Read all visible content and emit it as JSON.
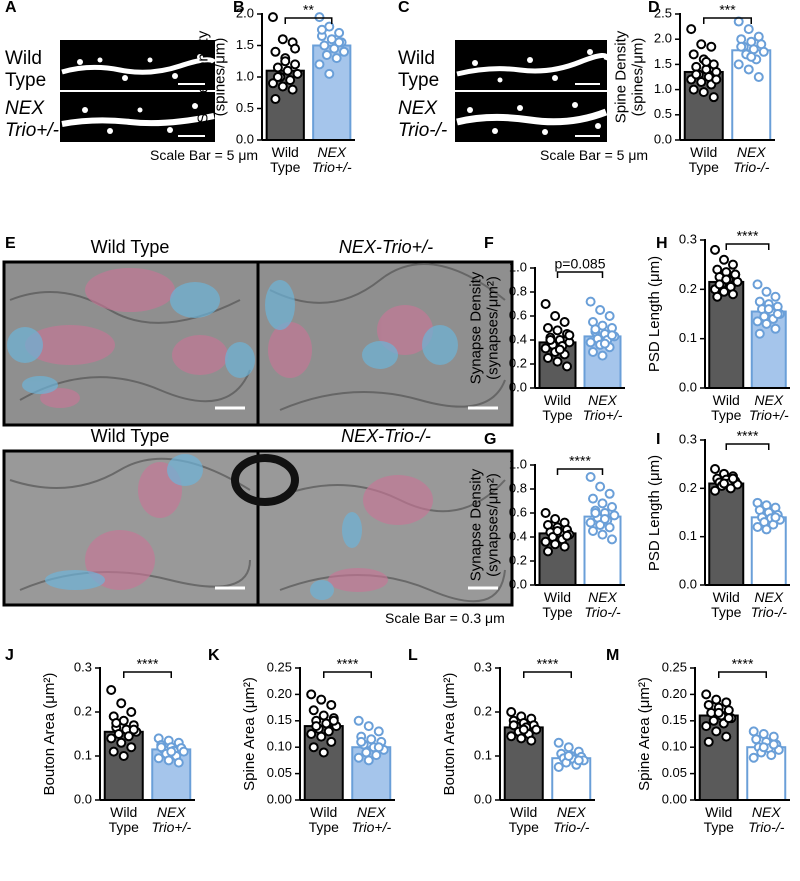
{
  "images": {
    "A": {
      "panel": "A",
      "labels": [
        "Wild Type",
        "NEX Trio+/-"
      ],
      "scale_bar": "Scale Bar = 5 μm"
    },
    "C": {
      "panel": "C",
      "labels": [
        "Wild Type",
        "NEX Trio-/-"
      ],
      "scale_bar": "Scale Bar = 5 μm"
    },
    "E": {
      "panel": "E",
      "titles": [
        "Wild Type",
        "NEX-Trio+/-",
        "Wild Type",
        "NEX-Trio-/-"
      ],
      "scale_bar": "Scale Bar = 0.3 μm"
    }
  },
  "chart_data": [
    {
      "type": "bar",
      "panel": "B",
      "ylabel": "Spine Density (spines/μm)",
      "categories": [
        "Wild Type",
        "NEX Trio+/-"
      ],
      "values": [
        1.1,
        1.5
      ],
      "colors": [
        "#5a5a5a",
        "#a5c5eb"
      ],
      "edge_colors": [
        "#000000",
        "#6a9fd8"
      ],
      "point_colors": [
        "#000000",
        "#6a9fd8"
      ],
      "points": [
        [
          1.95,
          1.6,
          1.55,
          1.4,
          1.3,
          1.2,
          1.15,
          1.1,
          1.05,
          1.0,
          0.95,
          0.9,
          0.85,
          0.8,
          0.65,
          1.25,
          1.45,
          1.0
        ],
        [
          1.95,
          1.8,
          1.7,
          1.65,
          1.6,
          1.55,
          1.5,
          1.45,
          1.4,
          1.35,
          1.3,
          1.2,
          1.05,
          1.55,
          1.75
        ]
      ],
      "ylim": [
        0,
        2
      ],
      "yticks": [
        {
          "value": 0,
          "label": "0.0"
        },
        0.5,
        {
          "value": 1,
          "label": "1.0"
        },
        1.5,
        {
          "value": 2,
          "label": "2.0"
        }
      ],
      "significance": "**"
    },
    {
      "type": "bar",
      "panel": "D",
      "ylabel": "Spine Density (spines/μm)",
      "categories": [
        "Wild Type",
        "NEX Trio-/-"
      ],
      "values": [
        1.35,
        1.78
      ],
      "colors": [
        "#5a5a5a",
        "#ffffff"
      ],
      "edge_colors": [
        "#000000",
        "#6a9fd8"
      ],
      "point_colors": [
        "#000000",
        "#6a9fd8"
      ],
      "points": [
        [
          2.2,
          1.9,
          1.85,
          1.7,
          1.6,
          1.5,
          1.45,
          1.4,
          1.35,
          1.3,
          1.25,
          1.2,
          1.15,
          1.1,
          1.0,
          0.95,
          0.85,
          1.3,
          1.55,
          1.2
        ],
        [
          2.35,
          2.2,
          2.05,
          2.0,
          1.95,
          1.9,
          1.85,
          1.8,
          1.75,
          1.7,
          1.6,
          1.5,
          1.4,
          1.25,
          1.85,
          1.65
        ]
      ],
      "ylim": [
        0,
        2.5
      ],
      "yticks": [
        {
          "value": 0,
          "label": "0.0"
        },
        0.5,
        {
          "value": 1,
          "label": "1.0"
        },
        1.5,
        {
          "value": 2,
          "label": "2.0"
        },
        2.5
      ],
      "significance": "***"
    },
    {
      "type": "bar",
      "panel": "F",
      "ylabel": "Synapse Density (synapses/μm²)",
      "categories": [
        "Wild Type",
        "NEX Trio+/-"
      ],
      "values": [
        0.38,
        0.43
      ],
      "colors": [
        "#5a5a5a",
        "#a5c5eb"
      ],
      "edge_colors": [
        "#000000",
        "#6a9fd8"
      ],
      "point_colors": [
        "#000000",
        "#6a9fd8"
      ],
      "points": [
        [
          0.7,
          0.6,
          0.55,
          0.5,
          0.48,
          0.45,
          0.42,
          0.4,
          0.38,
          0.36,
          0.35,
          0.33,
          0.3,
          0.28,
          0.25,
          0.22,
          0.18,
          0.4,
          0.32,
          0.44
        ],
        [
          0.72,
          0.65,
          0.6,
          0.55,
          0.52,
          0.5,
          0.47,
          0.45,
          0.43,
          0.41,
          0.4,
          0.38,
          0.36,
          0.34,
          0.3,
          0.27,
          0.44,
          0.49,
          0.37
        ]
      ],
      "ylim": [
        0,
        1
      ],
      "yticks": [
        {
          "value": 0,
          "label": "0.0"
        },
        0.2,
        0.4,
        0.6,
        0.8,
        {
          "value": 1,
          "label": "1.0"
        }
      ],
      "significance": "p=0.085"
    },
    {
      "type": "bar",
      "panel": "H",
      "ylabel": "PSD Length (μm)",
      "categories": [
        "Wild Type",
        "NEX Trio+/-"
      ],
      "values": [
        0.215,
        0.155
      ],
      "colors": [
        "#5a5a5a",
        "#a5c5eb"
      ],
      "edge_colors": [
        "#000000",
        "#6a9fd8"
      ],
      "point_colors": [
        "#000000",
        "#6a9fd8"
      ],
      "points": [
        [
          0.28,
          0.26,
          0.25,
          0.24,
          0.235,
          0.23,
          0.225,
          0.22,
          0.215,
          0.21,
          0.205,
          0.2,
          0.195,
          0.19,
          0.185,
          0.22,
          0.23,
          0.21
        ],
        [
          0.21,
          0.195,
          0.185,
          0.175,
          0.17,
          0.165,
          0.16,
          0.155,
          0.15,
          0.145,
          0.14,
          0.135,
          0.13,
          0.12,
          0.11,
          0.16,
          0.15
        ]
      ],
      "ylim": [
        0,
        0.3
      ],
      "yticks": [
        {
          "value": 0,
          "label": "0.0"
        },
        0.1,
        0.2,
        0.3
      ],
      "significance": "****"
    },
    {
      "type": "bar",
      "panel": "G",
      "ylabel": "Synapse Density (synapses/μm²)",
      "categories": [
        "Wild Type",
        "NEX Trio-/-"
      ],
      "values": [
        0.43,
        0.57
      ],
      "colors": [
        "#5a5a5a",
        "#ffffff"
      ],
      "edge_colors": [
        "#000000",
        "#6a9fd8"
      ],
      "point_colors": [
        "#000000",
        "#6a9fd8"
      ],
      "points": [
        [
          0.6,
          0.55,
          0.52,
          0.5,
          0.48,
          0.46,
          0.44,
          0.43,
          0.42,
          0.4,
          0.38,
          0.36,
          0.34,
          0.32,
          0.28,
          0.45,
          0.41
        ],
        [
          0.9,
          0.82,
          0.76,
          0.72,
          0.68,
          0.65,
          0.62,
          0.6,
          0.58,
          0.56,
          0.54,
          0.52,
          0.5,
          0.48,
          0.45,
          0.42,
          0.38,
          0.6,
          0.55
        ]
      ],
      "ylim": [
        0,
        1
      ],
      "yticks": [
        {
          "value": 0,
          "label": "0.0"
        },
        0.2,
        0.4,
        0.6,
        0.8,
        {
          "value": 1,
          "label": "1.0"
        }
      ],
      "significance": "****"
    },
    {
      "type": "bar",
      "panel": "I",
      "ylabel": "PSD Length (μm)",
      "categories": [
        "Wild Type",
        "NEX Trio-/-"
      ],
      "values": [
        0.21,
        0.14
      ],
      "colors": [
        "#5a5a5a",
        "#ffffff"
      ],
      "edge_colors": [
        "#000000",
        "#6a9fd8"
      ],
      "point_colors": [
        "#000000",
        "#6a9fd8"
      ],
      "points": [
        [
          0.24,
          0.23,
          0.225,
          0.22,
          0.218,
          0.215,
          0.212,
          0.21,
          0.208,
          0.205,
          0.2,
          0.195,
          0.21,
          0.22
        ],
        [
          0.17,
          0.165,
          0.16,
          0.155,
          0.15,
          0.145,
          0.14,
          0.138,
          0.135,
          0.13,
          0.125,
          0.12,
          0.115,
          0.14
        ]
      ],
      "ylim": [
        0,
        0.3
      ],
      "yticks": [
        {
          "value": 0,
          "label": "0.0"
        },
        0.1,
        0.2,
        0.3
      ],
      "significance": "****"
    },
    {
      "type": "bar",
      "panel": "J",
      "ylabel": "Bouton Area (μm²)",
      "categories": [
        "Wild Type",
        "NEX Trio+/-"
      ],
      "values": [
        0.155,
        0.115
      ],
      "colors": [
        "#5a5a5a",
        "#a5c5eb"
      ],
      "edge_colors": [
        "#000000",
        "#6a9fd8"
      ],
      "point_colors": [
        "#000000",
        "#6a9fd8"
      ],
      "points": [
        [
          0.25,
          0.22,
          0.2,
          0.19,
          0.18,
          0.17,
          0.165,
          0.16,
          0.155,
          0.15,
          0.145,
          0.14,
          0.13,
          0.12,
          0.11,
          0.1,
          0.16,
          0.175
        ],
        [
          0.14,
          0.135,
          0.13,
          0.125,
          0.12,
          0.118,
          0.115,
          0.112,
          0.11,
          0.105,
          0.1,
          0.095,
          0.09,
          0.085,
          0.12,
          0.11
        ]
      ],
      "ylim": [
        0,
        0.3
      ],
      "yticks": [
        {
          "value": 0,
          "label": "0.0"
        },
        0.1,
        0.2,
        0.3
      ],
      "significance": "****"
    },
    {
      "type": "bar",
      "panel": "K",
      "ylabel": "Spine Area (μm²)",
      "categories": [
        "Wild Type",
        "NEX Trio+/-"
      ],
      "values": [
        0.14,
        0.1
      ],
      "colors": [
        "#5a5a5a",
        "#a5c5eb"
      ],
      "edge_colors": [
        "#000000",
        "#6a9fd8"
      ],
      "point_colors": [
        "#000000",
        "#6a9fd8"
      ],
      "points": [
        [
          0.2,
          0.19,
          0.18,
          0.17,
          0.16,
          0.155,
          0.15,
          0.145,
          0.14,
          0.135,
          0.13,
          0.125,
          0.12,
          0.11,
          0.1,
          0.09,
          0.15,
          0.14
        ],
        [
          0.15,
          0.14,
          0.13,
          0.12,
          0.115,
          0.11,
          0.105,
          0.1,
          0.095,
          0.09,
          0.085,
          0.08,
          0.075,
          0.1,
          0.11
        ]
      ],
      "ylim": [
        0,
        0.25
      ],
      "yticks": [
        {
          "value": 0,
          "label": "0.00"
        },
        0.05,
        {
          "value": 0.1,
          "label": "0.10"
        },
        0.15,
        {
          "value": 0.2,
          "label": "0.20"
        },
        0.25
      ],
      "significance": "****"
    },
    {
      "type": "bar",
      "panel": "L",
      "ylabel": "Bouton Area (μm²)",
      "categories": [
        "Wild Type",
        "NEX Trio-/-"
      ],
      "values": [
        0.165,
        0.095
      ],
      "colors": [
        "#5a5a5a",
        "#ffffff"
      ],
      "edge_colors": [
        "#000000",
        "#6a9fd8"
      ],
      "point_colors": [
        "#000000",
        "#6a9fd8"
      ],
      "points": [
        [
          0.2,
          0.19,
          0.185,
          0.18,
          0.175,
          0.17,
          0.168,
          0.165,
          0.16,
          0.155,
          0.15,
          0.145,
          0.14,
          0.135,
          0.17,
          0.16
        ],
        [
          0.13,
          0.12,
          0.11,
          0.105,
          0.1,
          0.098,
          0.095,
          0.092,
          0.09,
          0.085,
          0.08,
          0.075,
          0.1,
          0.09
        ]
      ],
      "ylim": [
        0,
        0.3
      ],
      "yticks": [
        {
          "value": 0,
          "label": "0.0"
        },
        0.1,
        0.2,
        0.3
      ],
      "significance": "****"
    },
    {
      "type": "bar",
      "panel": "M",
      "ylabel": "Spine Area (μm²)",
      "categories": [
        "Wild Type",
        "NEX Trio-/-"
      ],
      "values": [
        0.16,
        0.1
      ],
      "colors": [
        "#5a5a5a",
        "#ffffff"
      ],
      "edge_colors": [
        "#000000",
        "#6a9fd8"
      ],
      "point_colors": [
        "#000000",
        "#6a9fd8"
      ],
      "points": [
        [
          0.2,
          0.19,
          0.185,
          0.18,
          0.175,
          0.17,
          0.165,
          0.16,
          0.155,
          0.15,
          0.145,
          0.14,
          0.13,
          0.12,
          0.11,
          0.165,
          0.155
        ],
        [
          0.13,
          0.125,
          0.12,
          0.115,
          0.11,
          0.105,
          0.1,
          0.098,
          0.095,
          0.09,
          0.085,
          0.08,
          0.1,
          0.105
        ]
      ],
      "ylim": [
        0,
        0.25
      ],
      "yticks": [
        {
          "value": 0,
          "label": "0.00"
        },
        0.05,
        {
          "value": 0.1,
          "label": "0.10"
        },
        0.15,
        {
          "value": 0.2,
          "label": "0.20"
        },
        0.25
      ],
      "significance": "****"
    }
  ]
}
